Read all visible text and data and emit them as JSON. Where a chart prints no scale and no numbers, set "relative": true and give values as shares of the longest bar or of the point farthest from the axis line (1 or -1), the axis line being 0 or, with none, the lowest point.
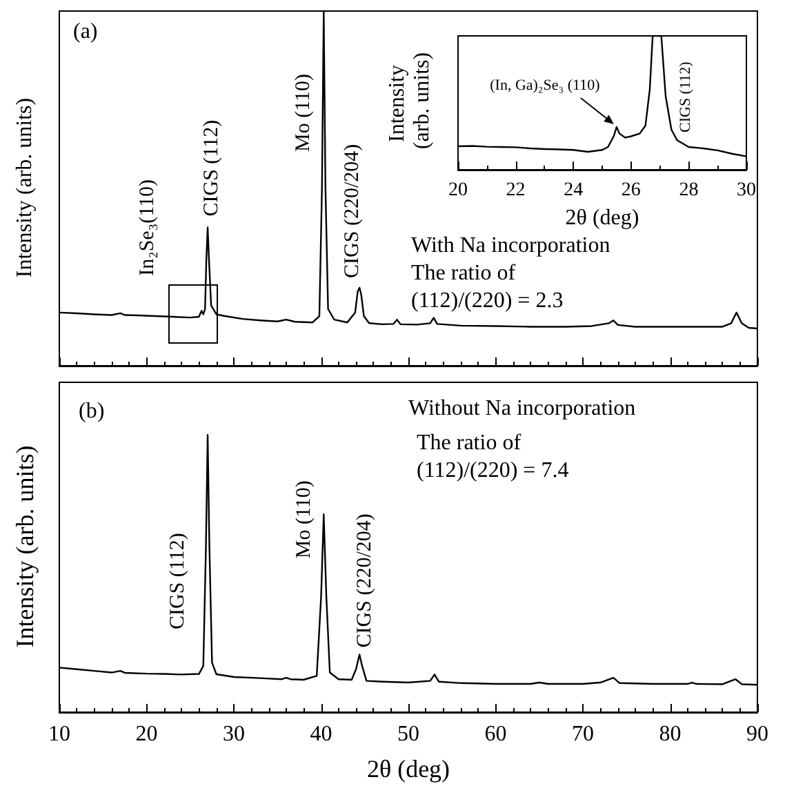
{
  "chart_data": [
    {
      "type": "line",
      "relative": true,
      "ylabel": "Intensity (arb. units)",
      "xlim": [
        10,
        90
      ],
      "xticks": [
        10,
        20,
        30,
        40,
        50,
        60,
        70,
        80,
        90
      ],
      "tick_labels": false,
      "grid": false,
      "marker": "none",
      "series": [
        {
          "color": "#000000",
          "x": [
            10,
            12,
            14,
            16,
            17,
            17.5,
            19,
            21,
            23,
            25,
            26,
            26.3,
            26.5,
            26.7,
            26.85,
            27,
            27.15,
            27.4,
            28,
            29,
            31,
            33,
            35,
            36,
            37,
            39,
            39.8,
            40.1,
            40.3,
            40.5,
            40.8,
            41.5,
            43,
            43.9,
            44.2,
            44.4,
            44.6,
            44.9,
            45.5,
            47,
            48.3,
            48.7,
            49.1,
            51,
            52.5,
            52.9,
            53.3,
            56,
            60,
            64,
            68,
            71,
            72,
            73,
            73.5,
            74,
            76,
            80,
            83,
            86,
            87,
            87.6,
            88.2,
            89,
            90
          ],
          "values": [
            0.15,
            0.148,
            0.145,
            0.143,
            0.148,
            0.143,
            0.142,
            0.14,
            0.138,
            0.136,
            0.138,
            0.155,
            0.145,
            0.16,
            0.3,
            0.39,
            0.3,
            0.17,
            0.145,
            0.14,
            0.132,
            0.128,
            0.125,
            0.13,
            0.124,
            0.122,
            0.14,
            0.5,
            1,
            0.5,
            0.16,
            0.13,
            0.122,
            0.15,
            0.21,
            0.22,
            0.2,
            0.14,
            0.12,
            0.117,
            0.118,
            0.13,
            0.117,
            0.116,
            0.12,
            0.135,
            0.118,
            0.113,
            0.112,
            0.11,
            0.11,
            0.112,
            0.116,
            0.12,
            0.128,
            0.115,
            0.11,
            0.11,
            0.11,
            0.11,
            0.12,
            0.15,
            0.12,
            0.107,
            0.105
          ]
        }
      ],
      "annotations": [
        "(a)",
        {
          "text": "In₂Se₃(110)",
          "x": 25.5,
          "y": 0.16
        },
        {
          "text": "CIGS (112)",
          "x": 27,
          "y": 0.39
        },
        "Mo (110)",
        {
          "text": "CIGS (220/204)",
          "x": 44.4,
          "y": 0.22
        },
        "With Na incorporation",
        "The ratio of",
        "(112)/(220) = 2.3"
      ]
    },
    {
      "type": "line",
      "relative": true,
      "xlabel": "2θ (deg)",
      "ylabel": "Intensity (arb. units)",
      "xlim": [
        20,
        30
      ],
      "xticks": [
        20,
        22,
        24,
        26,
        28,
        30
      ],
      "tick_labels": "x",
      "grid": false,
      "marker": "none",
      "series": [
        {
          "color": "#000000",
          "x": [
            20,
            20.5,
            21,
            21.5,
            22,
            22.5,
            23,
            23.5,
            24,
            24.5,
            25,
            25.2,
            25.4,
            25.5,
            25.6,
            25.8,
            26,
            26.3,
            26.5,
            26.65,
            26.75,
            27.05,
            27.2,
            27.4,
            27.6,
            28,
            28.5,
            29,
            29.5,
            30
          ],
          "values": [
            0.175,
            0.178,
            0.172,
            0.17,
            0.168,
            0.16,
            0.155,
            0.152,
            0.148,
            0.134,
            0.148,
            0.17,
            0.25,
            0.32,
            0.27,
            0.24,
            0.25,
            0.27,
            0.33,
            0.6,
            1,
            1,
            0.55,
            0.3,
            0.22,
            0.17,
            0.16,
            0.145,
            0.12,
            0.1
          ]
        }
      ],
      "annotations": [
        {
          "text": "(In, Ga)₂Se₃ (110)",
          "x": 25.5,
          "y": 0.32
        },
        {
          "text": "CIGS (112)",
          "x": 27,
          "y": 1
        }
      ]
    },
    {
      "type": "line",
      "relative": true,
      "xlabel": "2θ (deg)",
      "ylabel": "Intensity (arb. units)",
      "xlim": [
        10,
        90
      ],
      "xticks": [
        10,
        20,
        30,
        40,
        50,
        60,
        70,
        80,
        90
      ],
      "tick_labels": "x",
      "grid": false,
      "marker": "none",
      "series": [
        {
          "color": "#000000",
          "x": [
            10,
            12,
            14,
            16,
            17,
            17.5,
            20,
            22,
            24,
            26,
            26.5,
            26.8,
            27,
            27.2,
            27.5,
            28,
            30,
            33,
            35.5,
            36,
            36.5,
            38,
            39.5,
            40,
            40.3,
            40.6,
            41,
            42,
            43.5,
            44,
            44.4,
            44.7,
            45.2,
            47,
            50,
            52.5,
            53,
            53.5,
            56,
            60,
            64,
            65,
            66,
            70,
            72,
            73.5,
            74.2,
            78,
            82,
            82.5,
            83,
            86,
            87.5,
            88.2,
            90
          ],
          "values": [
            0.161,
            0.155,
            0.149,
            0.143,
            0.149,
            0.142,
            0.139,
            0.138,
            0.136,
            0.138,
            0.167,
            0.595,
            1,
            0.595,
            0.179,
            0.137,
            0.127,
            0.123,
            0.119,
            0.124,
            0.119,
            0.117,
            0.131,
            0.417,
            0.714,
            0.417,
            0.143,
            0.119,
            0.117,
            0.155,
            0.208,
            0.167,
            0.113,
            0.11,
            0.107,
            0.113,
            0.136,
            0.11,
            0.105,
            0.102,
            0.102,
            0.107,
            0.102,
            0.102,
            0.107,
            0.124,
            0.105,
            0.102,
            0.102,
            0.107,
            0.102,
            0.101,
            0.119,
            0.101,
            0.099
          ]
        }
      ],
      "annotations": [
        "(b)",
        "CIGS (112)",
        {
          "text": "Mo (110)",
          "x": 40.3,
          "y": 0.714
        },
        {
          "text": "CIGS (220/204)",
          "x": 44.4,
          "y": 0.208
        },
        "Without Na incorporation",
        "The ratio of",
        "(112)/(220) = 7.4"
      ]
    }
  ]
}
